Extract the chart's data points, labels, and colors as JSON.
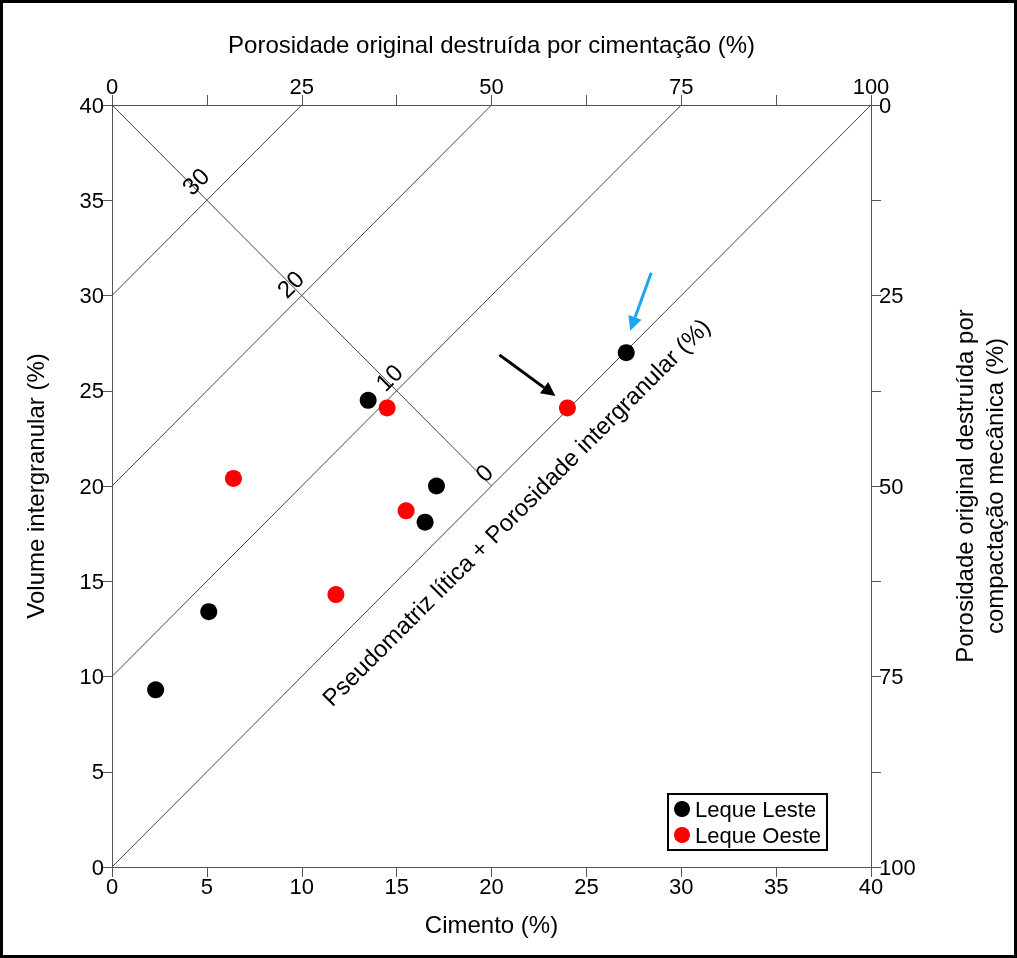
{
  "chart_data": {
    "type": "scatter",
    "xlabel": "Cimento (%)",
    "ylabel": "Volume intergranular (%)",
    "x2label": "Porosidade original destruída por cimentação (%)",
    "y2label": "Porosidade original destruída por\ncompactação mecânica (%)",
    "xlim": [
      0,
      40
    ],
    "xticks": [
      0,
      5,
      10,
      15,
      20,
      25,
      30,
      35,
      40
    ],
    "ylim": [
      0,
      40
    ],
    "yticks": [
      0,
      5,
      10,
      15,
      20,
      25,
      30,
      35,
      40
    ],
    "x2lim": [
      0,
      100
    ],
    "x2ticks": [
      0,
      {
        "value": 12.5,
        "label": null
      },
      25,
      {
        "value": 37.5,
        "label": null
      },
      50,
      {
        "value": 62.5,
        "label": null
      },
      75,
      {
        "value": 87.5,
        "label": null
      },
      100
    ],
    "y2lim": [
      100,
      0
    ],
    "y2ticks": [
      0,
      {
        "value": 12.5,
        "label": null
      },
      25,
      {
        "value": 37.5,
        "label": null
      },
      50,
      {
        "value": 62.5,
        "label": null
      },
      75,
      {
        "value": 87.5,
        "label": null
      },
      100
    ],
    "grid": false,
    "legend": "bottom right",
    "marker": "circle",
    "series": [
      {
        "name": "Leque Leste",
        "color": "#000000",
        "x": [
          2.3,
          5.1,
          13.5,
          17.1,
          16.5,
          27.1
        ],
        "values": [
          9.3,
          13.4,
          24.5,
          20.0,
          18.1,
          27.0
        ]
      },
      {
        "name": "Leque Oeste",
        "color": "#ff0000",
        "x": [
          6.4,
          14.5,
          15.5,
          11.8,
          24.0
        ],
        "values": [
          20.4,
          24.1,
          18.7,
          14.3,
          24.1
        ]
      },
      {
        "type": "line",
        "color": "#444444",
        "marker": "none",
        "x": [
          0,
          40
        ],
        "values": [
          0,
          40
        ]
      },
      {
        "type": "line",
        "color": "#444444",
        "marker": "none",
        "x": [
          0,
          30
        ],
        "values": [
          10,
          40
        ]
      },
      {
        "type": "line",
        "color": "#444444",
        "marker": "none",
        "x": [
          0,
          20
        ],
        "values": [
          20,
          40
        ]
      },
      {
        "type": "line",
        "color": "#444444",
        "marker": "none",
        "x": [
          0,
          10
        ],
        "values": [
          30,
          40
        ]
      },
      {
        "type": "line",
        "color": "#444444",
        "marker": "none",
        "x": [
          0,
          20
        ],
        "values": [
          40,
          20
        ]
      }
    ],
    "annotations": [
      {
        "text": "30",
        "x": 4.4,
        "y": 36.0
      },
      {
        "text": "20",
        "x": 9.4,
        "y": 30.6
      },
      {
        "text": "10",
        "x": 14.6,
        "y": 25.7
      },
      {
        "text": "0",
        "x": 19.6,
        "y": 20.7
      },
      "Pseudomatriz lítica + Porosidade intergranular (%)"
    ]
  }
}
